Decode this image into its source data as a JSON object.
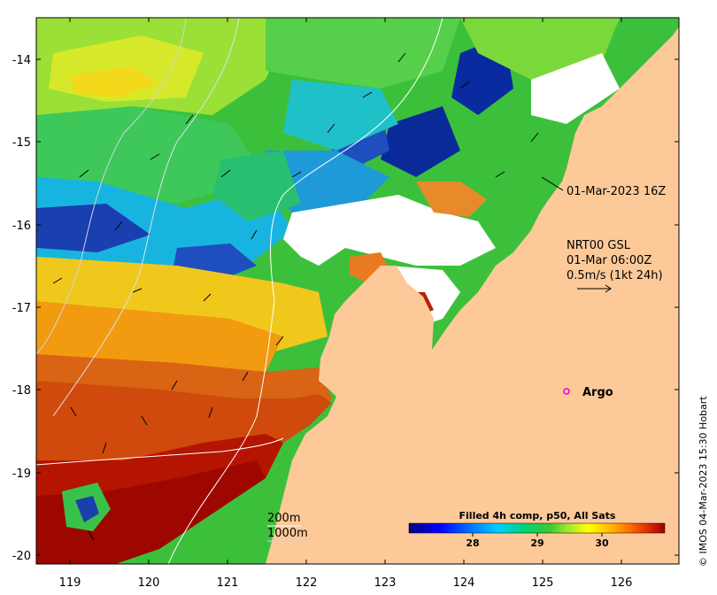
{
  "map": {
    "lon_ticks": [
      "119",
      "120",
      "121",
      "122",
      "123",
      "124",
      "125",
      "126"
    ],
    "lat_ticks": [
      "-14",
      "-15",
      "-16",
      "-17",
      "-18",
      "-19",
      "-20"
    ],
    "annotations": {
      "pass_time": "01-Mar-2023 16Z",
      "currents_title": "NRT00 GSL",
      "currents_time": "01-Mar 06:00Z",
      "currents_scale": "0.5m/s (1kt 24h)",
      "argo_label": "Argo",
      "isobath_200": "200m",
      "isobath_1000": "1000m"
    },
    "colorbar": {
      "title": "Filled 4h comp, p50, All Sats",
      "ticks": [
        "28",
        "29",
        "30"
      ],
      "colors": [
        "#00007f",
        "#0000ff",
        "#007fff",
        "#00c8ff",
        "#00e5c8",
        "#00c864",
        "#32c832",
        "#96e632",
        "#e6e600",
        "#ffc800",
        "#ff9600",
        "#ff6400",
        "#e63200",
        "#c81400",
        "#9b0000"
      ]
    },
    "credit": "© IMOS 04-Mar-2023 15:30 Hobart",
    "colors": {
      "land": "#fdc999",
      "warm": "#c51a00",
      "cool": "#0a2a9a"
    }
  }
}
